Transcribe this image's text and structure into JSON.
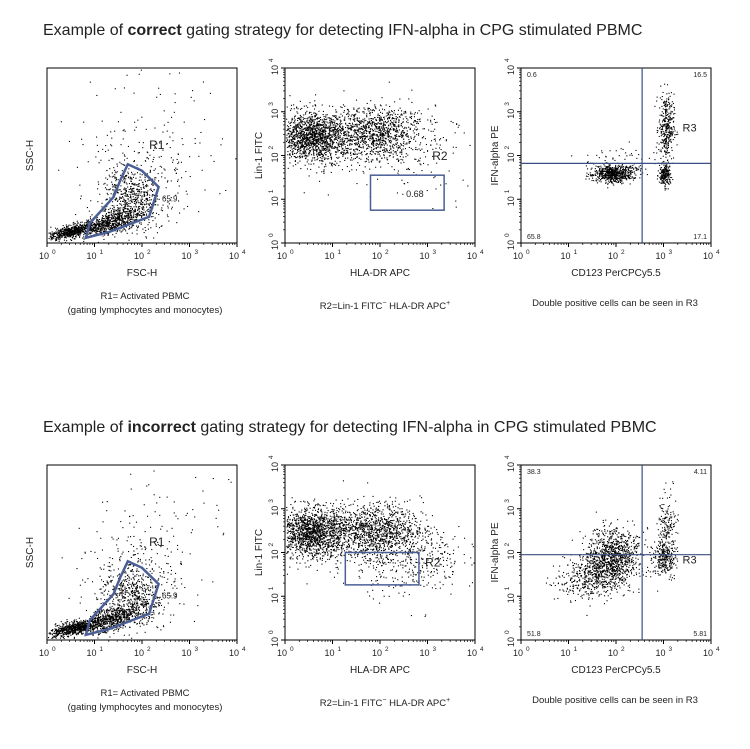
{
  "colors": {
    "gate": "#4a5f96",
    "quadrant": "#3a4f86",
    "dots": "#000000",
    "frame": "#000000"
  },
  "sections": [
    {
      "title_pre": "Example of ",
      "title_bold": "correct",
      "title_post": " gating strategy for detecting IFN-alpha in CPG stimulated PBMC",
      "plots": [
        {
          "kind": "fsc_ssc",
          "xlabel": "FSC-H",
          "ylabel": "SSC-H",
          "ticks": [
            "10",
            "10",
            "10",
            "10",
            "10"
          ],
          "exps": [
            "0",
            "1",
            "2",
            "3",
            "4"
          ],
          "y_ticks": false,
          "gate_label": "R1",
          "gate_value": "65.9",
          "caption": [
            "R1= Activated PBMC",
            "(gating lymphocytes and monocytes)"
          ]
        },
        {
          "kind": "lin_hla",
          "xlabel": "HLA-DR APC",
          "ylabel": "Lin-1 FITC",
          "ticks": [
            "10",
            "10",
            "10",
            "10",
            "10"
          ],
          "exps": [
            "0",
            "1",
            "2",
            "3",
            "4"
          ],
          "gate_label": "R2",
          "gate_value": "0.68",
          "caption_pre": "R2=Lin-1 FITC",
          "caption_sup1": "−",
          "caption_mid": " HLA-DR APC",
          "caption_sup2": "+"
        },
        {
          "kind": "cd123_ifn",
          "xlabel": "CD123 PerCPCy5.5",
          "ylabel": "IFN-alpha PE",
          "ticks": [
            "10",
            "10",
            "10",
            "10",
            "10"
          ],
          "exps": [
            "0",
            "1",
            "2",
            "3",
            "4"
          ],
          "gate_label": "R3",
          "quadrants": {
            "ul": "0.6",
            "ur": "16.5",
            "ll": "65.8",
            "lr": "17.1"
          },
          "caption": [
            "Double positive cells can be seen in R3"
          ]
        }
      ]
    },
    {
      "title_pre": "Example of ",
      "title_bold": "incorrect",
      "title_post": " gating strategy for detecting IFN-alpha in CPG stimulated PBMC",
      "plots": [
        {
          "kind": "fsc_ssc",
          "xlabel": "FSC-H",
          "ylabel": "SSC-H",
          "ticks": [
            "10",
            "10",
            "10",
            "10",
            "10"
          ],
          "exps": [
            "0",
            "1",
            "2",
            "3",
            "4"
          ],
          "y_ticks": false,
          "gate_label": "R1",
          "gate_value": "65.9",
          "caption": [
            "R1= Activated PBMC",
            "(gating lymphocytes and monocytes)"
          ]
        },
        {
          "kind": "lin_hla_incorrect",
          "xlabel": "HLA-DR APC",
          "ylabel": "Lin-1 FITC",
          "ticks": [
            "10",
            "10",
            "10",
            "10",
            "10"
          ],
          "exps": [
            "0",
            "1",
            "2",
            "3",
            "4"
          ],
          "gate_label": "R2",
          "caption_pre": "R2=Lin-1 FITC",
          "caption_sup1": "−",
          "caption_mid": " HLA-DR APC",
          "caption_sup2": "+"
        },
        {
          "kind": "cd123_ifn_incorrect",
          "xlabel": "CD123 PerCPCy5.5",
          "ylabel": "IFN-alpha PE",
          "ticks": [
            "10",
            "10",
            "10",
            "10",
            "10"
          ],
          "exps": [
            "0",
            "1",
            "2",
            "3",
            "4"
          ],
          "gate_label": "R3",
          "quadrants": {
            "ul": "38.3",
            "ur": "4.11",
            "ll": "51.8",
            "lr": "5.81"
          },
          "caption": [
            "Double positive cells can be seen in R3"
          ]
        }
      ]
    }
  ],
  "chart_data": [
    {
      "type": "scatter",
      "panel": "correct-1",
      "xlabel": "FSC-H",
      "ylabel": "SSC-H",
      "xlim": [
        1,
        10000
      ],
      "xscale": "log",
      "gates": [
        {
          "name": "R1",
          "percent": 65.9
        }
      ]
    },
    {
      "type": "scatter",
      "panel": "correct-2",
      "xlabel": "HLA-DR APC",
      "ylabel": "Lin-1 FITC",
      "xlim": [
        1,
        10000
      ],
      "ylim": [
        1,
        10000
      ],
      "xscale": "log",
      "yscale": "log",
      "gates": [
        {
          "name": "R2",
          "percent": 0.68
        }
      ]
    },
    {
      "type": "scatter",
      "panel": "correct-3",
      "xlabel": "CD123 PerCPCy5.5",
      "ylabel": "IFN-alpha PE",
      "xlim": [
        1,
        10000
      ],
      "ylim": [
        1,
        10000
      ],
      "xscale": "log",
      "yscale": "log",
      "quadrants": {
        "upper_left": 0.6,
        "upper_right": 16.5,
        "lower_left": 65.8,
        "lower_right": 17.1
      },
      "gates": [
        {
          "name": "R3"
        }
      ]
    },
    {
      "type": "scatter",
      "panel": "incorrect-1",
      "xlabel": "FSC-H",
      "ylabel": "SSC-H",
      "xlim": [
        1,
        10000
      ],
      "xscale": "log",
      "gates": [
        {
          "name": "R1",
          "percent": 65.9
        }
      ]
    },
    {
      "type": "scatter",
      "panel": "incorrect-2",
      "xlabel": "HLA-DR APC",
      "ylabel": "Lin-1 FITC",
      "xlim": [
        1,
        10000
      ],
      "ylim": [
        1,
        10000
      ],
      "xscale": "log",
      "yscale": "log",
      "gates": [
        {
          "name": "R2"
        }
      ]
    },
    {
      "type": "scatter",
      "panel": "incorrect-3",
      "xlabel": "CD123 PerCPCy5.5",
      "ylabel": "IFN-alpha PE",
      "xlim": [
        1,
        10000
      ],
      "ylim": [
        1,
        10000
      ],
      "xscale": "log",
      "yscale": "log",
      "quadrants": {
        "upper_left": 38.3,
        "upper_right": 4.11,
        "lower_left": 51.8,
        "lower_right": 5.81
      },
      "gates": [
        {
          "name": "R3"
        }
      ]
    }
  ]
}
